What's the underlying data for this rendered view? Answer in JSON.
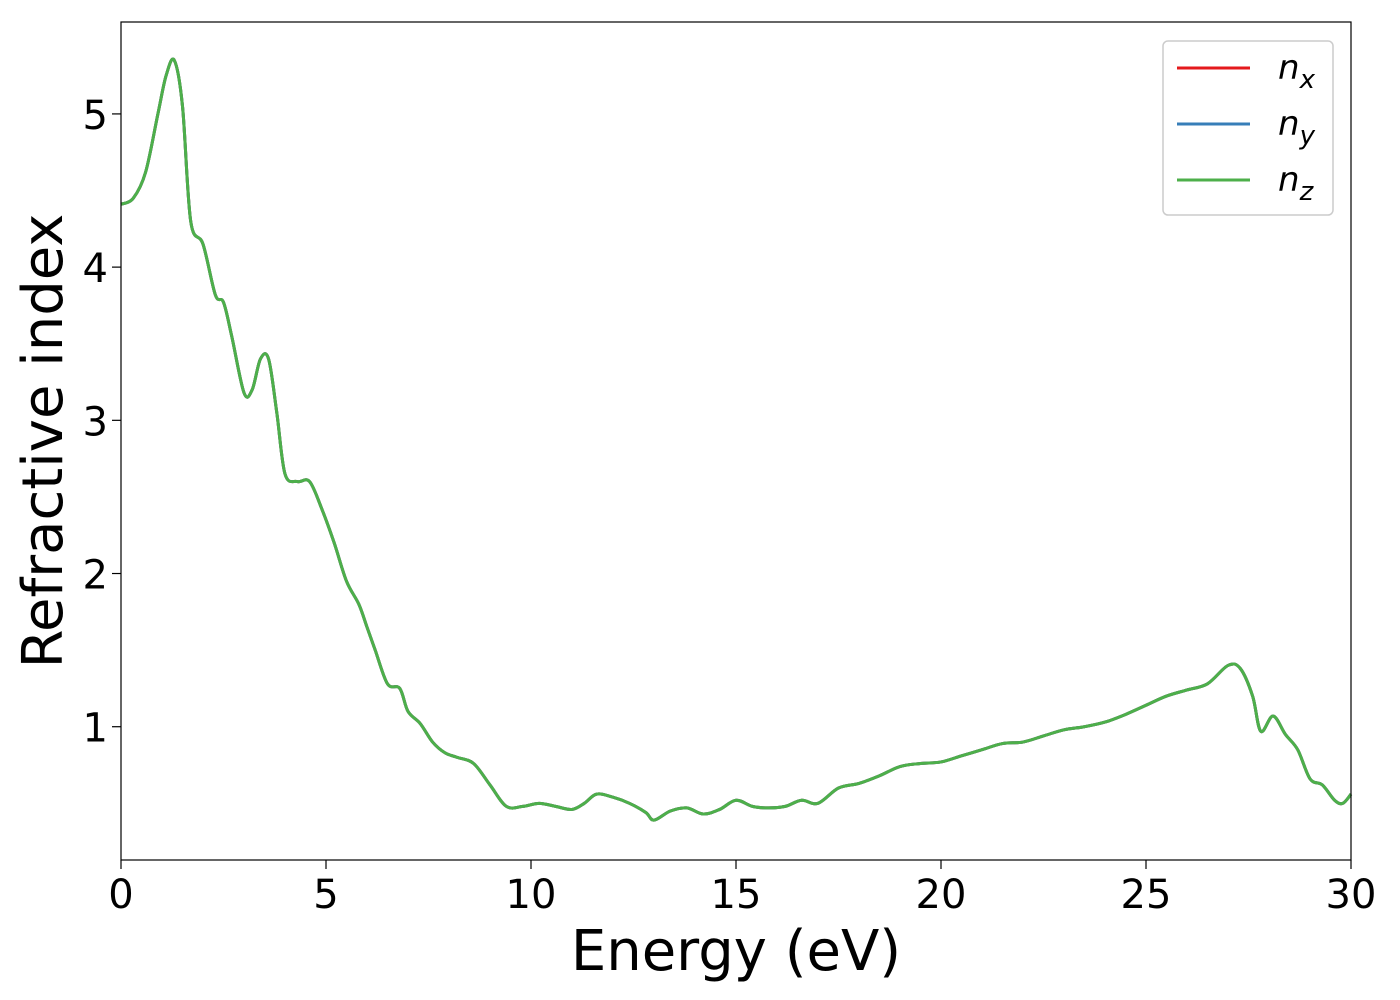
{
  "chart_data": {
    "type": "line",
    "title": "",
    "xlabel": "Energy (eV)",
    "ylabel": "Refractive index",
    "xlim": [
      0,
      30
    ],
    "ylim": [
      0.13,
      5.6
    ],
    "xticks": [
      0,
      5,
      10,
      15,
      20,
      25,
      30
    ],
    "yticks": [
      1,
      2,
      3,
      4,
      5
    ],
    "grid": false,
    "legend_position": "top-right",
    "x": [
      0,
      0.3,
      0.6,
      0.9,
      1.1,
      1.3,
      1.5,
      1.7,
      2.0,
      2.3,
      2.5,
      2.7,
      3.0,
      3.2,
      3.4,
      3.6,
      3.8,
      4.0,
      4.3,
      4.6,
      4.9,
      5.2,
      5.5,
      5.8,
      6.0,
      6.2,
      6.5,
      6.8,
      7.0,
      7.3,
      7.6,
      7.9,
      8.2,
      8.6,
      9.0,
      9.4,
      9.8,
      10.2,
      10.6,
      11.0,
      11.3,
      11.6,
      12.0,
      12.4,
      12.8,
      13.0,
      13.4,
      13.8,
      14.2,
      14.6,
      15.0,
      15.4,
      15.8,
      16.2,
      16.6,
      17.0,
      17.5,
      18.0,
      18.5,
      19.0,
      19.5,
      20.0,
      20.5,
      21.0,
      21.5,
      22.0,
      22.5,
      23.0,
      23.5,
      24.0,
      24.5,
      25.0,
      25.5,
      26.0,
      26.5,
      27.0,
      27.3,
      27.6,
      27.8,
      28.1,
      28.4,
      28.7,
      29.0,
      29.3,
      29.6,
      29.8,
      30.0
    ],
    "series": [
      {
        "name": "n_x",
        "color": "#e41a1c",
        "values": [
          4.41,
          4.45,
          4.62,
          5.0,
          5.25,
          5.35,
          5.05,
          4.3,
          4.15,
          3.82,
          3.77,
          3.55,
          3.18,
          3.2,
          3.4,
          3.4,
          3.05,
          2.65,
          2.6,
          2.6,
          2.42,
          2.2,
          1.95,
          1.8,
          1.65,
          1.5,
          1.28,
          1.25,
          1.1,
          1.02,
          0.9,
          0.83,
          0.8,
          0.76,
          0.62,
          0.48,
          0.48,
          0.5,
          0.48,
          0.46,
          0.5,
          0.56,
          0.54,
          0.5,
          0.44,
          0.39,
          0.45,
          0.47,
          0.43,
          0.46,
          0.52,
          0.48,
          0.47,
          0.48,
          0.52,
          0.5,
          0.6,
          0.63,
          0.68,
          0.74,
          0.76,
          0.77,
          0.81,
          0.85,
          0.89,
          0.9,
          0.94,
          0.98,
          1.0,
          1.03,
          1.08,
          1.14,
          1.2,
          1.24,
          1.28,
          1.4,
          1.38,
          1.2,
          0.97,
          1.07,
          0.95,
          0.85,
          0.66,
          0.62,
          0.52,
          0.5,
          0.56
        ]
      },
      {
        "name": "n_y",
        "color": "#377eb8",
        "values": [
          4.41,
          4.45,
          4.62,
          5.0,
          5.25,
          5.35,
          5.05,
          4.3,
          4.15,
          3.82,
          3.77,
          3.55,
          3.18,
          3.2,
          3.4,
          3.4,
          3.05,
          2.65,
          2.6,
          2.6,
          2.42,
          2.2,
          1.95,
          1.8,
          1.65,
          1.5,
          1.28,
          1.25,
          1.1,
          1.02,
          0.9,
          0.83,
          0.8,
          0.76,
          0.62,
          0.48,
          0.48,
          0.5,
          0.48,
          0.46,
          0.5,
          0.56,
          0.54,
          0.5,
          0.44,
          0.39,
          0.45,
          0.47,
          0.43,
          0.46,
          0.52,
          0.48,
          0.47,
          0.48,
          0.52,
          0.5,
          0.6,
          0.63,
          0.68,
          0.74,
          0.76,
          0.77,
          0.81,
          0.85,
          0.89,
          0.9,
          0.94,
          0.98,
          1.0,
          1.03,
          1.08,
          1.14,
          1.2,
          1.24,
          1.28,
          1.4,
          1.38,
          1.2,
          0.97,
          1.07,
          0.95,
          0.85,
          0.66,
          0.62,
          0.52,
          0.5,
          0.56
        ]
      },
      {
        "name": "n_z",
        "color": "#4daf4a",
        "values": [
          4.41,
          4.45,
          4.62,
          5.0,
          5.25,
          5.35,
          5.05,
          4.3,
          4.15,
          3.82,
          3.77,
          3.55,
          3.18,
          3.2,
          3.4,
          3.4,
          3.05,
          2.65,
          2.6,
          2.6,
          2.42,
          2.2,
          1.95,
          1.8,
          1.65,
          1.5,
          1.28,
          1.25,
          1.1,
          1.02,
          0.9,
          0.83,
          0.8,
          0.76,
          0.62,
          0.48,
          0.48,
          0.5,
          0.48,
          0.46,
          0.5,
          0.56,
          0.54,
          0.5,
          0.44,
          0.39,
          0.45,
          0.47,
          0.43,
          0.46,
          0.52,
          0.48,
          0.47,
          0.48,
          0.52,
          0.5,
          0.6,
          0.63,
          0.68,
          0.74,
          0.76,
          0.77,
          0.81,
          0.85,
          0.89,
          0.9,
          0.94,
          0.98,
          1.0,
          1.03,
          1.08,
          1.14,
          1.2,
          1.24,
          1.28,
          1.4,
          1.38,
          1.2,
          0.97,
          1.07,
          0.95,
          0.85,
          0.66,
          0.62,
          0.52,
          0.5,
          0.56
        ]
      }
    ]
  }
}
